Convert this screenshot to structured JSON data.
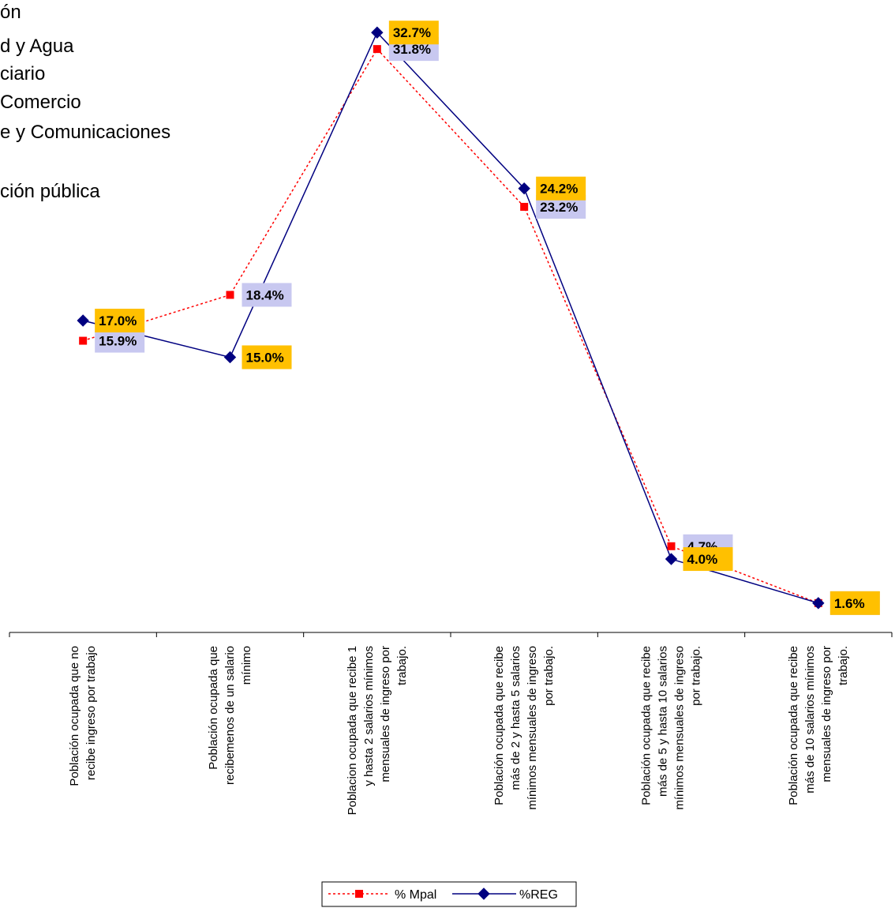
{
  "background_list": [
    "ón",
    "d y Agua",
    "ciario",
    "Comercio",
    "e y Comunicaciones",
    "ción pública"
  ],
  "chart_data": {
    "type": "line",
    "ylim": [
      0,
      34
    ],
    "categories": [
      [
        "Población ocupada que no",
        "recibe ingreso por trabajo"
      ],
      [
        "Población ocupada que",
        "recibemenos de un salario",
        "mínimo"
      ],
      [
        "Poblacion ocupada que recibe 1",
        "y hasta 2 salarios mínimos",
        "mensuales de ingreso por",
        "trabajo."
      ],
      [
        "Población ocupada que recibe",
        "más de 2 y hasta 5 salarios",
        "mínimos mensuales de ingreso",
        "por trabajo."
      ],
      [
        "Población ocupada que recibe",
        "más de 5 y hasta 10 salarios",
        "mínimos mensuales de ingreso",
        "por trabajo."
      ],
      [
        "Población ocupada que recibe",
        "más de 10 salarios mínimos",
        "mensuales de ingreso por",
        "trabajo."
      ]
    ],
    "series": [
      {
        "name": "% Mpal",
        "values": [
          15.9,
          18.4,
          31.8,
          23.2,
          4.7,
          1.6
        ],
        "labels": [
          "15.9%",
          "18.4%",
          "31.8%",
          "23.2%",
          "4.7%",
          "1.6%"
        ],
        "color": "#ff0000",
        "label_bg": "#c8c8f0",
        "marker": "square",
        "line_style": "dotted"
      },
      {
        "name": "%REG",
        "values": [
          17.0,
          15.0,
          32.7,
          24.2,
          4.0,
          1.6
        ],
        "labels": [
          "17.0%",
          "15.0%",
          "32.7%",
          "24.2%",
          "4.0%",
          "1.6%"
        ],
        "color": "#000080",
        "label_bg": "#ffc000",
        "marker": "diamond",
        "line_style": "solid"
      }
    ],
    "legend": {
      "placement": "bottom",
      "items": [
        "% Mpal",
        "%REG"
      ]
    }
  }
}
